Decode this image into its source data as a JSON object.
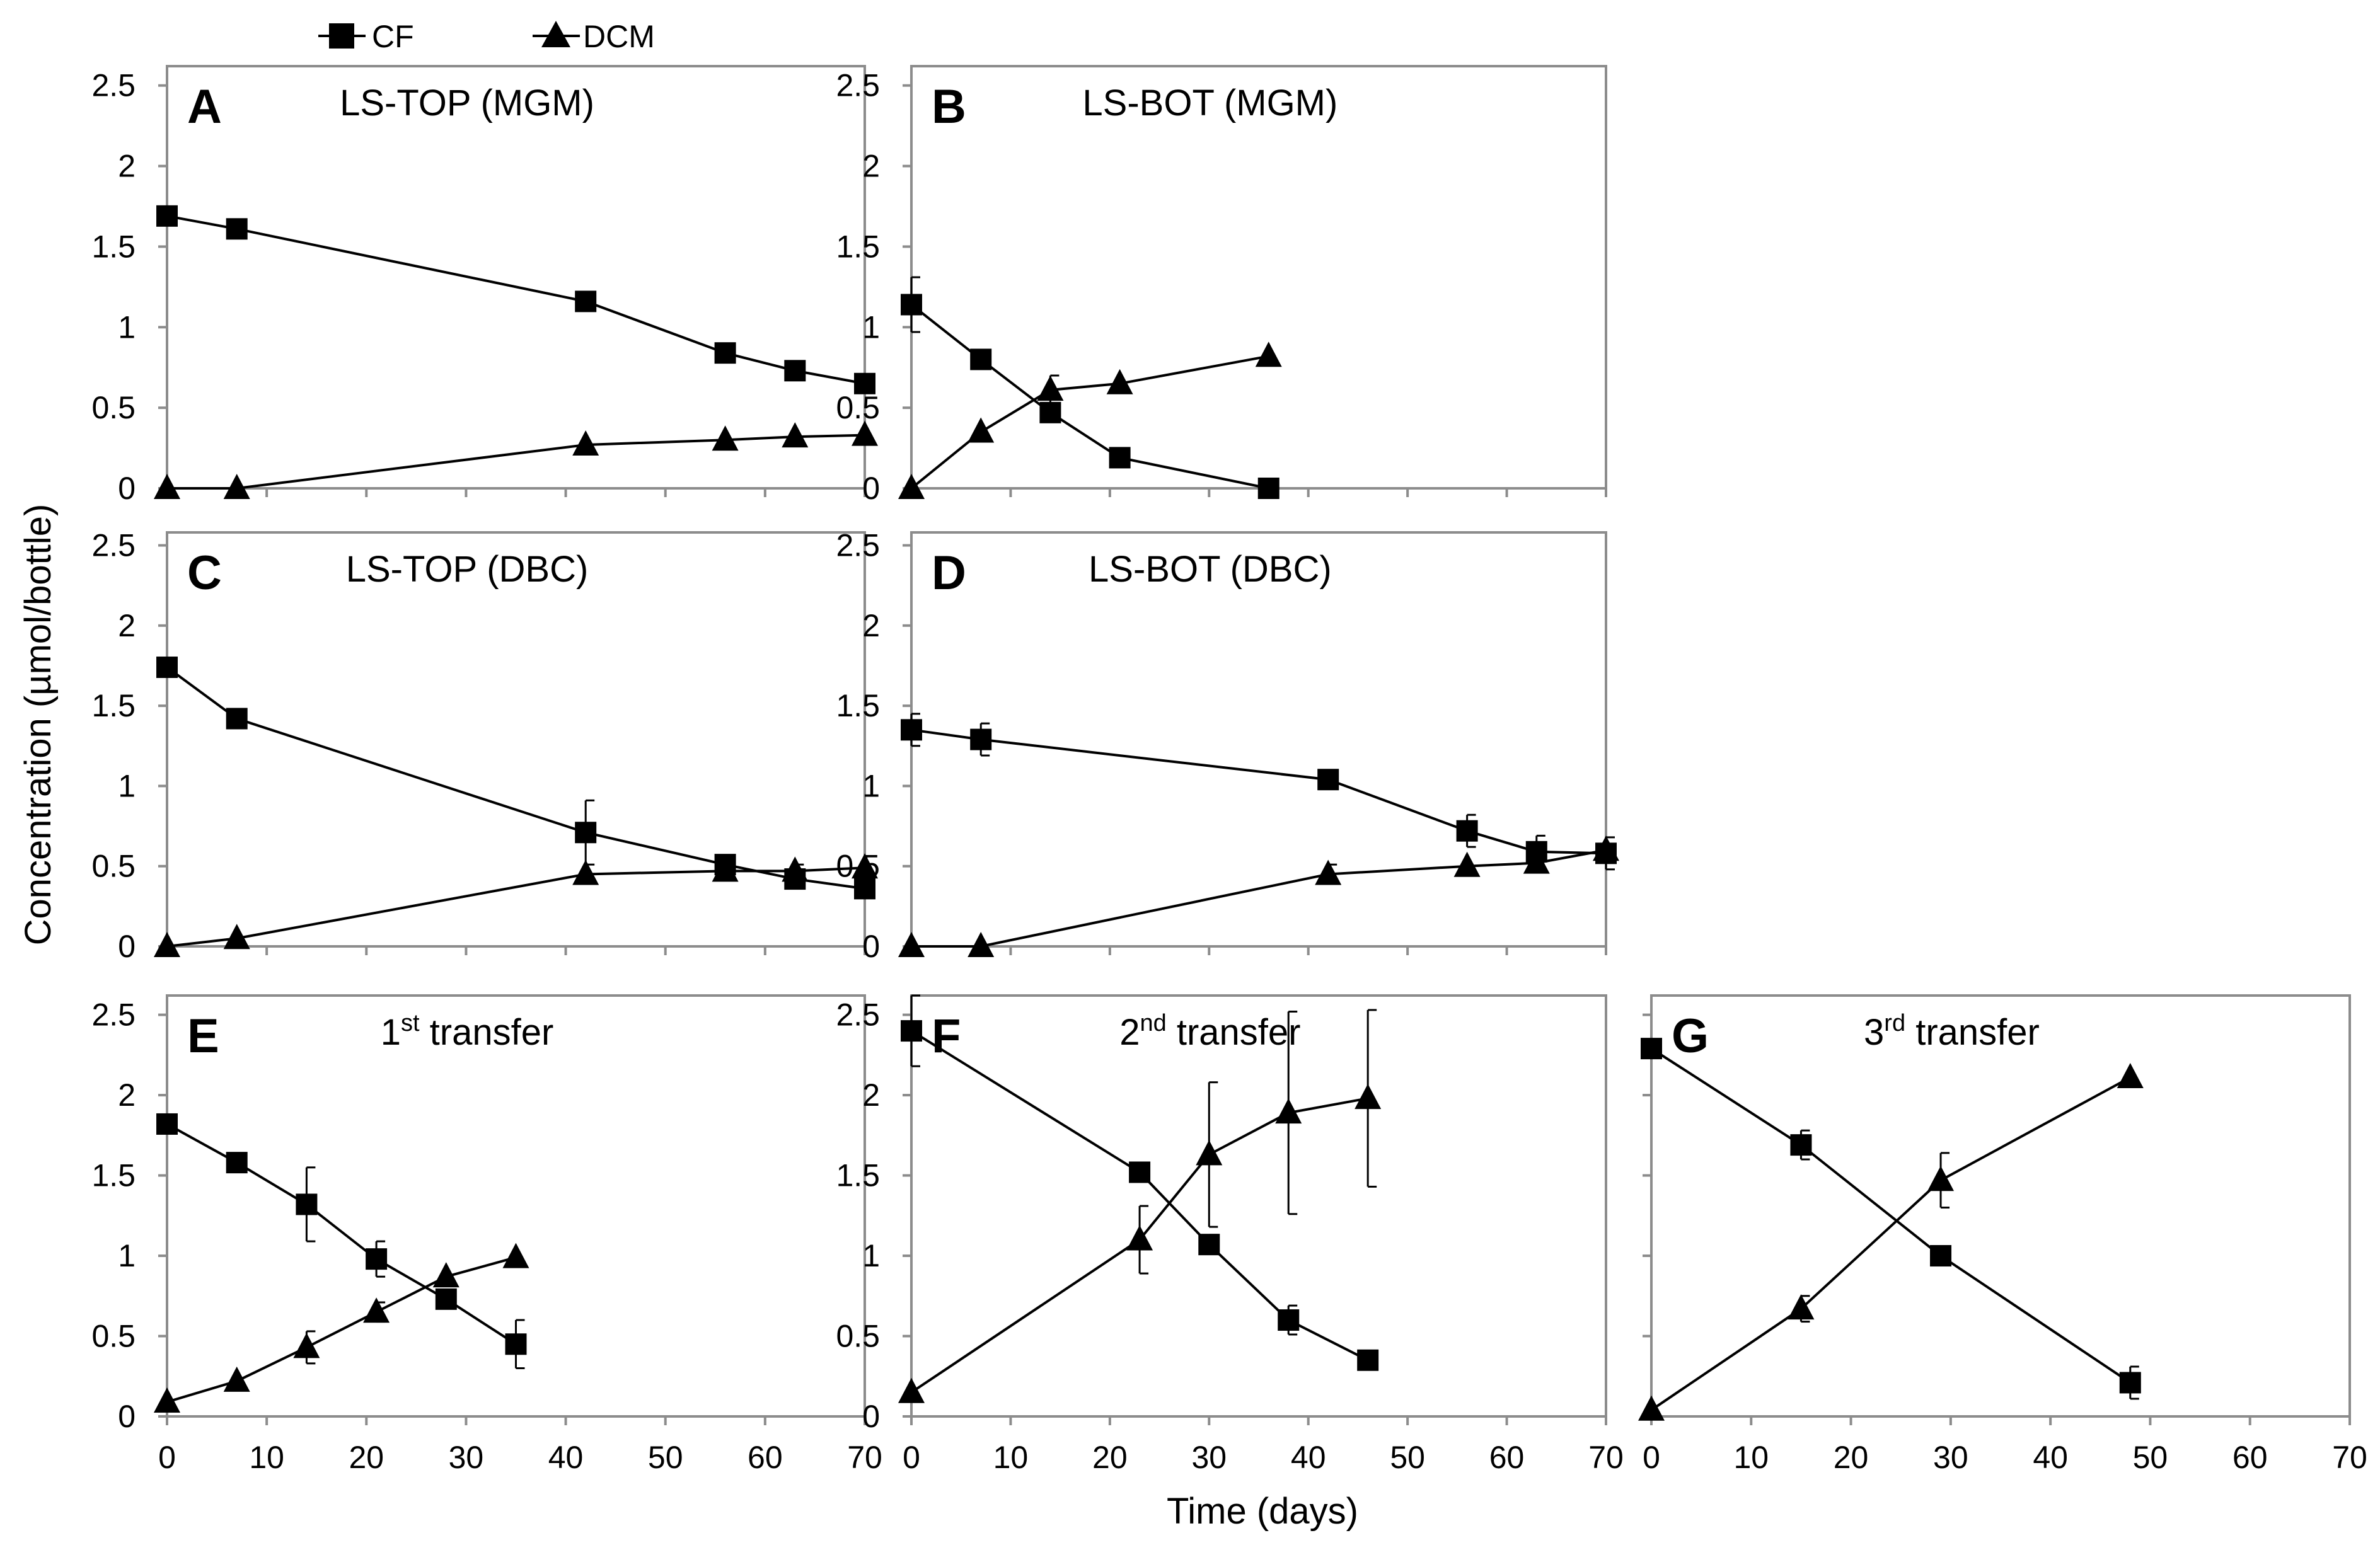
{
  "chart_data": {
    "type": "line",
    "y_axis_title": "Concentration (µmol/bottle)",
    "x_axis_title": "Time (days)",
    "legend": [
      {
        "name": "CF",
        "marker": "square"
      },
      {
        "name": "DCM",
        "marker": "triangle"
      }
    ],
    "xlim": [
      0,
      70
    ],
    "ylim": [
      0,
      2.5
    ],
    "x_tick_labels": [
      "0",
      "10",
      "20",
      "30",
      "40",
      "50",
      "60",
      "70"
    ],
    "y_tick_labels": [
      "0",
      "0.5",
      "1",
      "1.5",
      "2",
      "2.5"
    ],
    "panels": [
      {
        "id": "A",
        "title": "LS-TOP (MGM)",
        "series": [
          {
            "name": "CF",
            "x": [
              0,
              7,
              42,
              56,
              63,
              70
            ],
            "y": [
              1.69,
              1.61,
              1.16,
              0.84,
              0.73,
              0.65
            ],
            "err": [
              0,
              0,
              0,
              0,
              0,
              0
            ]
          },
          {
            "name": "DCM",
            "x": [
              0,
              7,
              42,
              56,
              63,
              70
            ],
            "y": [
              0,
              0,
              0.27,
              0.3,
              0.32,
              0.33
            ],
            "err": [
              0,
              0,
              0,
              0,
              0,
              0
            ]
          }
        ]
      },
      {
        "id": "B",
        "title": "LS-BOT (MGM)",
        "series": [
          {
            "name": "CF",
            "x": [
              0,
              7,
              14,
              21,
              36
            ],
            "y": [
              1.14,
              0.8,
              0.47,
              0.19,
              0
            ],
            "err": [
              0.17,
              0,
              0,
              0,
              0
            ]
          },
          {
            "name": "DCM",
            "x": [
              0,
              7,
              14,
              21,
              36
            ],
            "y": [
              0,
              0.35,
              0.61,
              0.65,
              0.82
            ],
            "err": [
              0,
              0,
              0.09,
              0,
              0
            ]
          }
        ]
      },
      {
        "id": "C",
        "title": "LS-TOP (DBC)",
        "series": [
          {
            "name": "CF",
            "x": [
              0,
              7,
              42,
              56,
              63,
              70
            ],
            "y": [
              1.74,
              1.42,
              0.71,
              0.51,
              0.42,
              0.36
            ],
            "err": [
              0,
              0,
              0.2,
              0.05,
              0.05,
              0
            ]
          },
          {
            "name": "DCM",
            "x": [
              0,
              7,
              42,
              56,
              63,
              70
            ],
            "y": [
              0,
              0.05,
              0.45,
              0.47,
              0.47,
              0.49
            ],
            "err": [
              0,
              0,
              0,
              0,
              0.04,
              0
            ]
          }
        ]
      },
      {
        "id": "D",
        "title": "LS-BOT (DBC)",
        "series": [
          {
            "name": "CF",
            "x": [
              0,
              7,
              42,
              56,
              63,
              70
            ],
            "y": [
              1.35,
              1.29,
              1.04,
              0.72,
              0.59,
              0.58
            ],
            "err": [
              0.1,
              0.1,
              0,
              0.1,
              0.1,
              0.1
            ]
          },
          {
            "name": "DCM",
            "x": [
              0,
              7,
              42,
              56,
              63,
              70
            ],
            "y": [
              0,
              0,
              0.45,
              0.5,
              0.52,
              0.6
            ],
            "err": [
              0,
              0,
              0.06,
              0,
              0,
              0
            ]
          }
        ]
      },
      {
        "id": "E",
        "title_main": "1",
        "title_sup": "st",
        "title_rest": " transfer",
        "series": [
          {
            "name": "CF",
            "x": [
              0,
              7,
              14,
              21,
              28,
              35
            ],
            "y": [
              1.82,
              1.58,
              1.32,
              0.98,
              0.73,
              0.45
            ],
            "err": [
              0,
              0,
              0.23,
              0.11,
              0.05,
              0.15
            ]
          },
          {
            "name": "DCM",
            "x": [
              0,
              7,
              14,
              21,
              28,
              35
            ],
            "y": [
              0.09,
              0.22,
              0.43,
              0.65,
              0.87,
              0.99
            ],
            "err": [
              0,
              0,
              0.1,
              0.06,
              0,
              0
            ]
          }
        ]
      },
      {
        "id": "F",
        "title_main": "2",
        "title_sup": "nd",
        "title_rest": " transfer",
        "series": [
          {
            "name": "CF",
            "x": [
              0,
              23,
              30,
              38,
              46
            ],
            "y": [
              2.4,
              1.52,
              1.07,
              0.6,
              0.35
            ],
            "err": [
              0.22,
              0,
              0.06,
              0.09,
              0.05
            ]
          },
          {
            "name": "DCM",
            "x": [
              0,
              23,
              30,
              38,
              46
            ],
            "y": [
              0.15,
              1.1,
              1.63,
              1.89,
              1.98
            ],
            "err": [
              0,
              0.21,
              0.45,
              0.63,
              0.55
            ]
          }
        ]
      },
      {
        "id": "G",
        "title_main": "3",
        "title_sup": "rd",
        "title_rest": " transfer",
        "series": [
          {
            "name": "CF",
            "x": [
              0,
              15,
              29,
              48
            ],
            "y": [
              2.29,
              1.69,
              1.0,
              0.21
            ],
            "err": [
              0,
              0.09,
              0.05,
              0.1
            ]
          },
          {
            "name": "DCM",
            "x": [
              0,
              15,
              29,
              48
            ],
            "y": [
              0.04,
              0.67,
              1.47,
              2.11
            ],
            "err": [
              0,
              0.08,
              0.17,
              0
            ]
          }
        ]
      }
    ]
  }
}
